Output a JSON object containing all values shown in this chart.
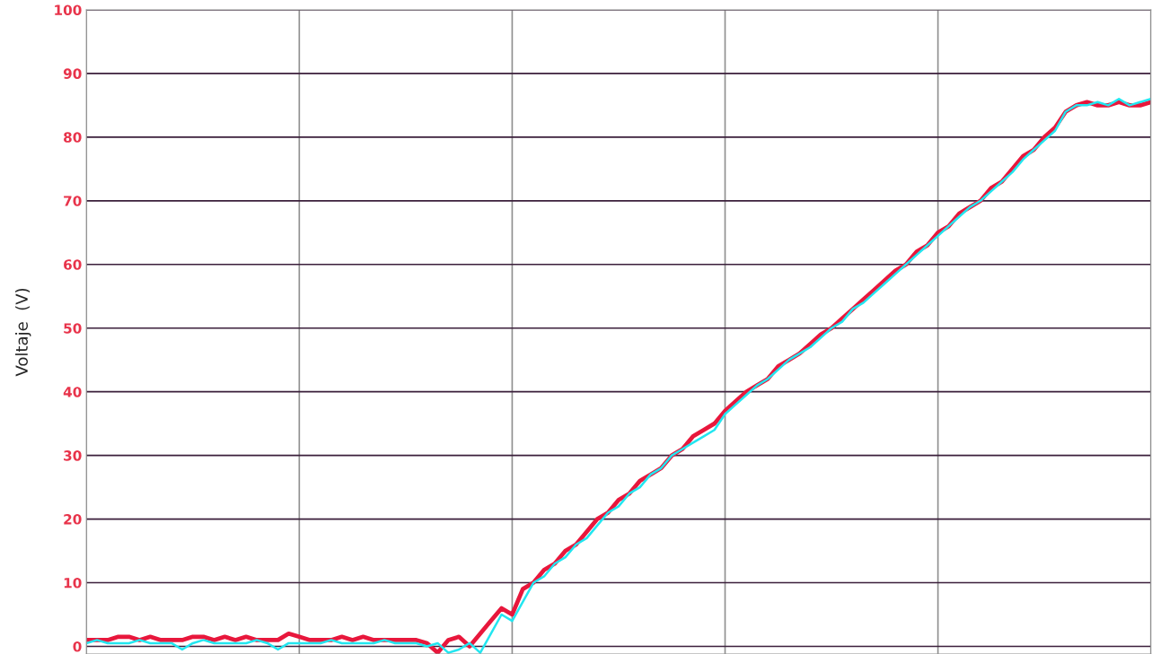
{
  "chart_data": {
    "type": "line",
    "ylabel": "Voltaje  (V)",
    "categories": [
      null,
      null,
      null,
      null,
      null,
      null,
      null,
      null,
      null,
      null,
      null,
      null,
      null,
      null,
      null,
      null,
      null,
      null,
      null,
      null,
      null,
      null,
      null,
      null,
      null,
      null,
      null,
      null,
      null,
      null,
      null,
      null,
      null,
      null,
      null,
      null,
      null,
      null,
      null,
      null,
      null,
      null,
      null,
      null,
      null,
      null,
      null,
      null,
      null,
      null,
      null,
      null,
      null,
      null,
      null,
      null,
      null,
      null,
      null,
      null,
      null,
      null,
      null,
      null,
      null,
      null,
      null,
      null,
      null,
      null,
      null,
      null,
      null,
      null,
      null,
      null,
      null,
      null,
      null,
      null,
      null,
      null,
      null,
      null,
      null,
      null,
      null,
      null,
      null,
      null,
      null,
      null,
      null,
      null,
      null,
      null,
      null,
      null,
      null,
      null,
      null
    ],
    "series": [
      {
        "color": "#e8173c",
        "values": [
          1,
          1,
          1,
          1.5,
          1.5,
          1,
          1.5,
          1,
          1,
          1,
          1.5,
          1.5,
          1,
          1.5,
          1,
          1.5,
          1,
          1,
          1,
          2,
          1.5,
          1,
          1,
          1,
          1.5,
          1,
          1.5,
          1,
          1,
          1,
          1,
          1,
          0.5,
          -1,
          1,
          1.5,
          0,
          2,
          4,
          6,
          5,
          9,
          10,
          12,
          13,
          15,
          16,
          18,
          20,
          21,
          23,
          24,
          26,
          27,
          28,
          30,
          31,
          33,
          34,
          35,
          37,
          38.5,
          40,
          41,
          42,
          44,
          45,
          46,
          47.5,
          49,
          50,
          51.5,
          53,
          54.5,
          56,
          57.5,
          59,
          60,
          62,
          63,
          65,
          66,
          68,
          69,
          70,
          72,
          73,
          75,
          77,
          78,
          80,
          81.5,
          84,
          85,
          85.5,
          85,
          85,
          85.5,
          85,
          85,
          85.5
        ]
      },
      {
        "color": "#22e6f0",
        "values": [
          0.5,
          1,
          0.5,
          0.5,
          0.5,
          1,
          0.5,
          0.5,
          0.5,
          -0.5,
          0.5,
          1,
          0.5,
          0.5,
          0.5,
          0.5,
          1,
          0.5,
          -0.5,
          0.5,
          0.5,
          0.5,
          0.5,
          1,
          0.5,
          0.5,
          0.5,
          0.5,
          1,
          0.5,
          0.5,
          0.5,
          0,
          0.5,
          -1,
          -0.5,
          0.5,
          -1,
          2,
          5,
          4,
          7,
          10,
          11,
          13,
          14,
          16,
          17,
          19,
          21,
          22,
          24,
          25,
          27,
          28,
          30,
          31,
          32,
          33,
          34,
          36.5,
          38,
          39.5,
          41,
          42,
          43.5,
          45,
          46,
          47,
          48.5,
          50,
          51,
          53,
          54,
          55.5,
          57,
          58.5,
          60,
          61.5,
          63,
          64.5,
          66,
          67.5,
          69,
          70,
          71.5,
          73,
          74.5,
          76.5,
          78,
          79.5,
          81,
          84,
          85,
          85,
          85.5,
          85,
          86,
          85,
          85.5,
          86
        ]
      }
    ],
    "ylim": [
      -1.2,
      100
    ],
    "yticks": [
      0,
      10,
      20,
      30,
      40,
      50,
      60,
      70,
      80,
      90,
      100
    ],
    "grid": true,
    "tick_labels": "y"
  }
}
